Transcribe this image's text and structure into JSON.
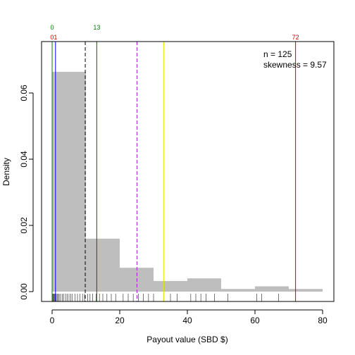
{
  "chart_data": {
    "type": "bar",
    "xlabel": "Payout value (SBD $)",
    "ylabel": "Density",
    "xlim": [
      0,
      80
    ],
    "ylim": [
      0,
      0.07
    ],
    "x_ticks": [
      "0",
      "20",
      "40",
      "60",
      "80"
    ],
    "y_ticks": [
      "0.00",
      "0.02",
      "0.04",
      "0.06"
    ],
    "bins": [
      {
        "from": 0,
        "to": 10,
        "density": 0.0664
      },
      {
        "from": 10,
        "to": 20,
        "density": 0.016
      },
      {
        "from": 20,
        "to": 30,
        "density": 0.0072
      },
      {
        "from": 30,
        "to": 40,
        "density": 0.0032
      },
      {
        "from": 40,
        "to": 50,
        "density": 0.004
      },
      {
        "from": 50,
        "to": 60,
        "density": 0.0008
      },
      {
        "from": 60,
        "to": 70,
        "density": 0.0016
      },
      {
        "from": 70,
        "to": 80,
        "density": 0.0008
      }
    ],
    "bar_color": "#bebebe",
    "rug": [
      0.1,
      0.2,
      0.3,
      0.5,
      0.6,
      0.8,
      1.0,
      1.2,
      1.5,
      1.8,
      2.1,
      2.5,
      3.0,
      3.4,
      4.0,
      4.5,
      5.0,
      5.5,
      6.0,
      6.8,
      7.5,
      8.2,
      9.0,
      9.6,
      10.5,
      11.2,
      12.0,
      13.0,
      14.0,
      15.0,
      16.2,
      17.5,
      18.8,
      21.0,
      22.5,
      24.0,
      25.5,
      27.0,
      28.5,
      30.0,
      33.0,
      35.0,
      37.0,
      41.0,
      42.5,
      44.0,
      45.5,
      48.0,
      52.0,
      60.5,
      62.0,
      67.0
    ],
    "vlines": [
      {
        "x": 0,
        "color": "#008000",
        "style": "solid"
      },
      {
        "x": 1,
        "color": "#0000ff",
        "style": "solid"
      },
      {
        "x": 9.8,
        "color": "#000000",
        "style": "dashed"
      },
      {
        "x": 13.2,
        "color": "#006400",
        "style": "solid"
      },
      {
        "x": 25.1,
        "color": "#a020f0",
        "style": "dashed"
      },
      {
        "x": 33,
        "color": "#e6e600",
        "style": "solid"
      },
      {
        "x": 72,
        "color": "#cc0000",
        "style": "solid"
      }
    ],
    "top_labels": [
      {
        "x": 0,
        "row": 1,
        "text": "0",
        "color": "#008000"
      },
      {
        "x": 13.2,
        "row": 1,
        "text": "13",
        "color": "#008000"
      },
      {
        "x": 0.5,
        "row": 2,
        "text": "01",
        "color": "#cc0000"
      },
      {
        "x": 72,
        "row": 2,
        "text": "72",
        "color": "#cc0000"
      }
    ],
    "annotations": [
      "n = 125",
      "skewness = 9.57"
    ]
  }
}
